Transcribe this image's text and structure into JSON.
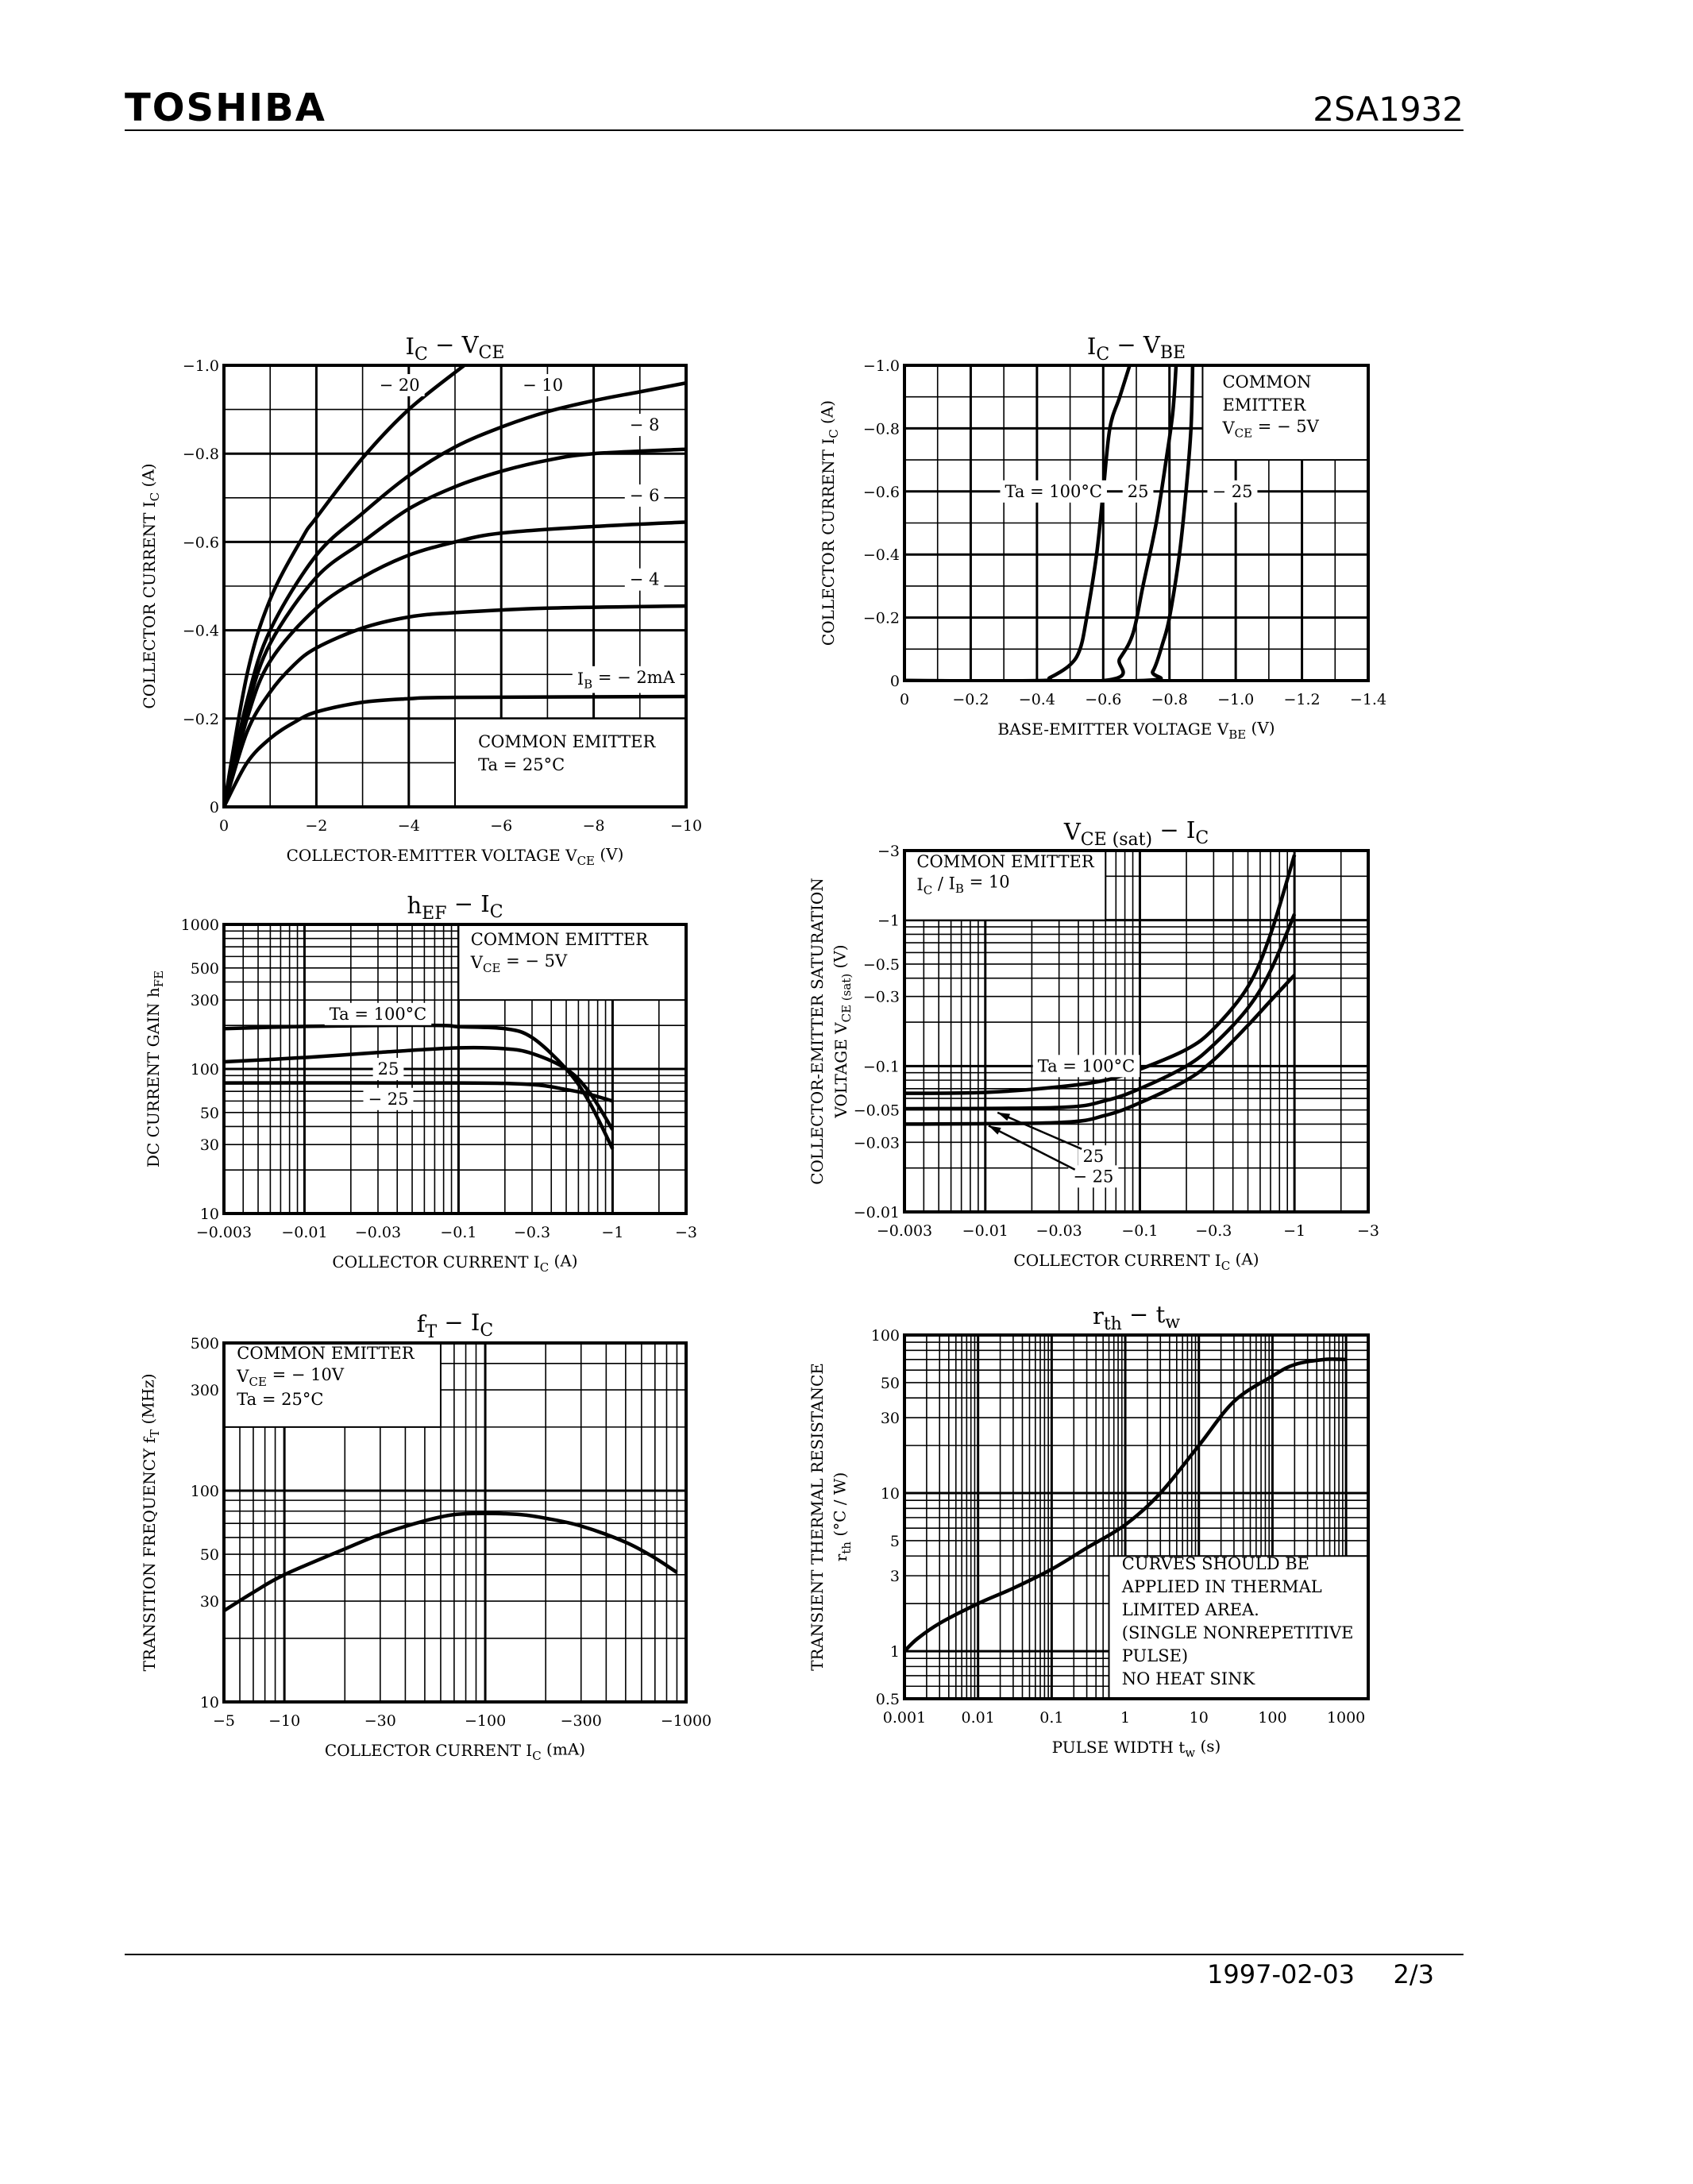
{
  "header": {
    "brand": "TOSHIBA",
    "part_number": "2SA1932"
  },
  "footer": {
    "date": "1997-02-03",
    "page": "2/3"
  },
  "colors": {
    "ink": "#000000",
    "paper": "#ffffff"
  },
  "chart_data": [
    {
      "type": "line",
      "title": "I{C} − V{CE}",
      "xlabel": "COLLECTOR-EMITTER VOLTAGE   V{CE}   (V)",
      "ylabel": [
        "COLLECTOR CURRENT   I{C}   (A)"
      ],
      "x_scale": "linear",
      "y_scale": "linear",
      "xlim": [
        0,
        -10
      ],
      "ylim": [
        0,
        -1.0
      ],
      "x_grid_step": -1,
      "y_grid_step": -0.1,
      "x_ticks": [
        "0",
        "−2",
        "−4",
        "−6",
        "−8",
        "−10"
      ],
      "y_ticks": [
        "0",
        "−0.2",
        "−0.4",
        "−0.6",
        "−0.8",
        "−1.0"
      ],
      "grid": true,
      "annotation": [
        "COMMON EMITTER",
        "Ta = 25°C"
      ],
      "series": [
        {
          "name": "I{B} = − 2mA",
          "points": [
            [
              0,
              0
            ],
            [
              -0.5,
              -0.1
            ],
            [
              -1,
              -0.155
            ],
            [
              -1.5,
              -0.19
            ],
            [
              -2,
              -0.215
            ],
            [
              -3,
              -0.237
            ],
            [
              -4,
              -0.245
            ],
            [
              -5,
              -0.248
            ],
            [
              -10,
              -0.25
            ]
          ]
        },
        {
          "name": "− 4",
          "points": [
            [
              0,
              0
            ],
            [
              -0.5,
              -0.17
            ],
            [
              -1,
              -0.26
            ],
            [
              -1.5,
              -0.32
            ],
            [
              -2,
              -0.36
            ],
            [
              -3,
              -0.405
            ],
            [
              -4,
              -0.43
            ],
            [
              -5,
              -0.44
            ],
            [
              -7,
              -0.45
            ],
            [
              -10,
              -0.455
            ]
          ]
        },
        {
          "name": "− 6",
          "points": [
            [
              0,
              0
            ],
            [
              -0.5,
              -0.2
            ],
            [
              -1,
              -0.33
            ],
            [
              -2,
              -0.45
            ],
            [
              -3,
              -0.52
            ],
            [
              -4,
              -0.57
            ],
            [
              -5,
              -0.6
            ],
            [
              -6,
              -0.62
            ],
            [
              -8,
              -0.635
            ],
            [
              -10,
              -0.645
            ]
          ]
        },
        {
          "name": "− 8",
          "points": [
            [
              0,
              0
            ],
            [
              -0.5,
              -0.22
            ],
            [
              -1,
              -0.37
            ],
            [
              -2,
              -0.52
            ],
            [
              -3,
              -0.6
            ],
            [
              -4,
              -0.675
            ],
            [
              -5,
              -0.725
            ],
            [
              -6,
              -0.76
            ],
            [
              -7,
              -0.785
            ],
            [
              -8,
              -0.8
            ],
            [
              -10,
              -0.81
            ]
          ]
        },
        {
          "name": "− 10",
          "points": [
            [
              0,
              0
            ],
            [
              -0.5,
              -0.24
            ],
            [
              -1,
              -0.4
            ],
            [
              -2,
              -0.57
            ],
            [
              -3,
              -0.665
            ],
            [
              -4,
              -0.75
            ],
            [
              -5,
              -0.815
            ],
            [
              -6,
              -0.86
            ],
            [
              -7,
              -0.895
            ],
            [
              -8,
              -0.92
            ],
            [
              -9,
              -0.94
            ],
            [
              -10,
              -0.96
            ]
          ]
        },
        {
          "name": "− 20",
          "points": [
            [
              0,
              0
            ],
            [
              -0.5,
              -0.3
            ],
            [
              -1,
              -0.47
            ],
            [
              -1.7,
              -0.61
            ],
            [
              -2,
              -0.655
            ],
            [
              -3,
              -0.79
            ],
            [
              -4,
              -0.9
            ],
            [
              -5.2,
              -1.0
            ]
          ]
        }
      ]
    },
    {
      "type": "line",
      "title": "I{C} − V{BE}",
      "xlabel": "BASE-EMITTER VOLTAGE   V{BE}   (V)",
      "ylabel": [
        "COLLECTOR CURRENT   I{C}   (A)"
      ],
      "x_scale": "linear",
      "y_scale": "linear",
      "xlim": [
        0,
        -1.4
      ],
      "ylim": [
        0,
        -1.0
      ],
      "x_grid_step": -0.1,
      "y_grid_step": -0.1,
      "x_ticks": [
        "0",
        "−0.2",
        "−0.4",
        "−0.6",
        "−0.8",
        "−1.0",
        "−1.2",
        "−1.4"
      ],
      "y_ticks": [
        "0",
        "−0.2",
        "−0.4",
        "−0.6",
        "−0.8",
        "−1.0"
      ],
      "grid": true,
      "annotation": [
        "COMMON",
        "EMITTER",
        "V{CE} = − 5V"
      ],
      "series": [
        {
          "name": "Ta = 100°C",
          "points": [
            [
              0,
              0
            ],
            [
              -0.4,
              0
            ],
            [
              -0.44,
              -0.01
            ],
            [
              -0.5,
              -0.05
            ],
            [
              -0.53,
              -0.1
            ],
            [
              -0.55,
              -0.2
            ],
            [
              -0.58,
              -0.4
            ],
            [
              -0.6,
              -0.6
            ],
            [
              -0.62,
              -0.8
            ],
            [
              -0.65,
              -0.9
            ],
            [
              -0.68,
              -1.0
            ]
          ]
        },
        {
          "name": "25",
          "points": [
            [
              0,
              0
            ],
            [
              -0.6,
              0
            ],
            [
              -0.65,
              -0.07
            ],
            [
              -0.69,
              -0.15
            ],
            [
              -0.72,
              -0.3
            ],
            [
              -0.76,
              -0.5
            ],
            [
              -0.79,
              -0.7
            ],
            [
              -0.81,
              -0.85
            ],
            [
              -0.82,
              -1.0
            ]
          ]
        },
        {
          "name": "− 25",
          "points": [
            [
              0,
              0
            ],
            [
              -0.71,
              0
            ],
            [
              -0.75,
              -0.03
            ],
            [
              -0.78,
              -0.12
            ],
            [
              -0.8,
              -0.2
            ],
            [
              -0.83,
              -0.4
            ],
            [
              -0.85,
              -0.6
            ],
            [
              -0.865,
              -0.8
            ],
            [
              -0.87,
              -1.0
            ]
          ]
        }
      ]
    },
    {
      "type": "line",
      "title": "h{EF} − I{C}",
      "xlabel": "COLLECTOR CURRENT   I{C}   (A)",
      "ylabel": [
        "DC CURRENT GAIN   h{FE}"
      ],
      "x_scale": "log",
      "y_scale": "log",
      "xlim": [
        -0.003,
        -3
      ],
      "ylim": [
        10,
        1000
      ],
      "x_ticks": [
        "−0.003",
        "−0.01",
        "−0.03",
        "−0.1",
        "−0.3",
        "−1",
        "−3"
      ],
      "y_ticks": [
        "10",
        "30",
        "50",
        "100",
        "300",
        "500",
        "1000"
      ],
      "grid": true,
      "annotation": [
        "COMMON EMITTER",
        "V{CE} = − 5V"
      ],
      "series": [
        {
          "name": "Ta = 100°C",
          "points": [
            [
              -0.003,
              190
            ],
            [
              -0.01,
              197
            ],
            [
              -0.03,
              200
            ],
            [
              -0.08,
              200
            ],
            [
              -0.1,
              196
            ],
            [
              -0.2,
              190
            ],
            [
              -0.3,
              165
            ],
            [
              -0.5,
              100
            ],
            [
              -0.7,
              60
            ],
            [
              -1,
              28
            ]
          ]
        },
        {
          "name": "25",
          "points": [
            [
              -0.003,
              112
            ],
            [
              -0.01,
              120
            ],
            [
              -0.03,
              130
            ],
            [
              -0.1,
              140
            ],
            [
              -0.2,
              138
            ],
            [
              -0.3,
              128
            ],
            [
              -0.5,
              100
            ],
            [
              -0.7,
              70
            ],
            [
              -1,
              38
            ]
          ]
        },
        {
          "name": "− 25",
          "points": [
            [
              -0.003,
              80
            ],
            [
              -0.1,
              80
            ],
            [
              -0.3,
              78
            ],
            [
              -0.5,
              72
            ],
            [
              -0.7,
              67
            ],
            [
              -1,
              60
            ]
          ]
        }
      ]
    },
    {
      "type": "line",
      "title": "V{CE (sat)} − I{C}",
      "xlabel": "COLLECTOR CURRENT   I{C}   (A)",
      "ylabel": [
        "COLLECTOR-EMITTER SATURATION",
        "VOLTAGE   V{CE (sat)}   (V)"
      ],
      "x_scale": "log",
      "y_scale": "log",
      "xlim": [
        -0.003,
        -3
      ],
      "ylim": [
        -0.01,
        -3
      ],
      "x_ticks": [
        "−0.003",
        "−0.01",
        "−0.03",
        "−0.1",
        "−0.3",
        "−1",
        "−3"
      ],
      "y_ticks": [
        "−0.01",
        "−0.03",
        "−0.05",
        "−0.1",
        "−0.3",
        "−0.5",
        "−1",
        "−3"
      ],
      "grid": true,
      "annotation": [
        "COMMON EMITTER",
        "I{C} / I{B} = 10"
      ],
      "series": [
        {
          "name": "Ta = 100°C",
          "points": [
            [
              -0.003,
              -0.065
            ],
            [
              -0.01,
              -0.066
            ],
            [
              -0.03,
              -0.072
            ],
            [
              -0.06,
              -0.08
            ],
            [
              -0.1,
              -0.095
            ],
            [
              -0.2,
              -0.13
            ],
            [
              -0.3,
              -0.18
            ],
            [
              -0.5,
              -0.35
            ],
            [
              -0.7,
              -0.8
            ],
            [
              -1,
              -2.8
            ]
          ]
        },
        {
          "name": "25",
          "points": [
            [
              -0.003,
              -0.051
            ],
            [
              -0.03,
              -0.052
            ],
            [
              -0.06,
              -0.058
            ],
            [
              -0.1,
              -0.07
            ],
            [
              -0.2,
              -0.1
            ],
            [
              -0.3,
              -0.14
            ],
            [
              -0.5,
              -0.25
            ],
            [
              -0.7,
              -0.45
            ],
            [
              -1,
              -1.1
            ]
          ]
        },
        {
          "name": "− 25",
          "points": [
            [
              -0.003,
              -0.04
            ],
            [
              -0.03,
              -0.041
            ],
            [
              -0.06,
              -0.046
            ],
            [
              -0.1,
              -0.056
            ],
            [
              -0.2,
              -0.08
            ],
            [
              -0.3,
              -0.11
            ],
            [
              -0.5,
              -0.19
            ],
            [
              -0.7,
              -0.28
            ],
            [
              -1,
              -0.42
            ]
          ]
        }
      ]
    },
    {
      "type": "line",
      "title": "f{T} − I{C}",
      "xlabel": "COLLECTOR CURRENT   I{C}   (mA)",
      "ylabel": [
        "TRANSITION FREQUENCY   f{T}   (MHz)"
      ],
      "x_scale": "log",
      "y_scale": "log",
      "xlim": [
        -5,
        -1000
      ],
      "ylim": [
        10,
        500
      ],
      "x_ticks": [
        "−5",
        "−10",
        "−30",
        "−100",
        "−300",
        "−1000"
      ],
      "y_ticks": [
        "10",
        "30",
        "50",
        "100",
        "300",
        "500"
      ],
      "grid": true,
      "annotation": [
        "COMMON EMITTER",
        "V{CE} = − 10V",
        "Ta = 25°C"
      ],
      "series": [
        {
          "points": [
            [
              -5,
              27
            ],
            [
              -7,
              33
            ],
            [
              -10,
              40
            ],
            [
              -20,
              53
            ],
            [
              -30,
              62
            ],
            [
              -50,
              72
            ],
            [
              -70,
              77
            ],
            [
              -100,
              78
            ],
            [
              -150,
              77
            ],
            [
              -200,
              74
            ],
            [
              -300,
              68
            ],
            [
              -500,
              57
            ],
            [
              -700,
              48
            ],
            [
              -900,
              41
            ]
          ]
        }
      ]
    },
    {
      "type": "line",
      "title": "r{th} − t{w}",
      "xlabel": "PULSE WIDTH   t{w}   (s)",
      "ylabel": [
        "TRANSIENT THERMAL RESISTANCE",
        "r{th}   (°C / W)"
      ],
      "x_scale": "log",
      "y_scale": "log",
      "xlim": [
        0.001,
        2000
      ],
      "ylim": [
        0.5,
        100
      ],
      "x_ticks": [
        "0.001",
        "0.01",
        "0.1",
        "1",
        "10",
        "100",
        "1000"
      ],
      "y_ticks": [
        "0.5",
        "1",
        "3",
        "5",
        "10",
        "30",
        "50",
        "100"
      ],
      "grid": true,
      "annotation": [
        "CURVES SHOULD BE",
        "APPLIED IN THERMAL",
        "LIMITED AREA.",
        "(SINGLE NONREPETITIVE",
        "PULSE)",
        "NO HEAT SINK"
      ],
      "series": [
        {
          "points": [
            [
              0.001,
              1
            ],
            [
              0.0015,
              1.2
            ],
            [
              0.003,
              1.5
            ],
            [
              0.01,
              2
            ],
            [
              0.03,
              2.5
            ],
            [
              0.1,
              3.3
            ],
            [
              0.3,
              4.5
            ],
            [
              1,
              6.3
            ],
            [
              3,
              10
            ],
            [
              10,
              20
            ],
            [
              30,
              38
            ],
            [
              100,
              55
            ],
            [
              200,
              65
            ],
            [
              500,
              70
            ],
            [
              1000,
              70
            ]
          ]
        }
      ]
    }
  ]
}
